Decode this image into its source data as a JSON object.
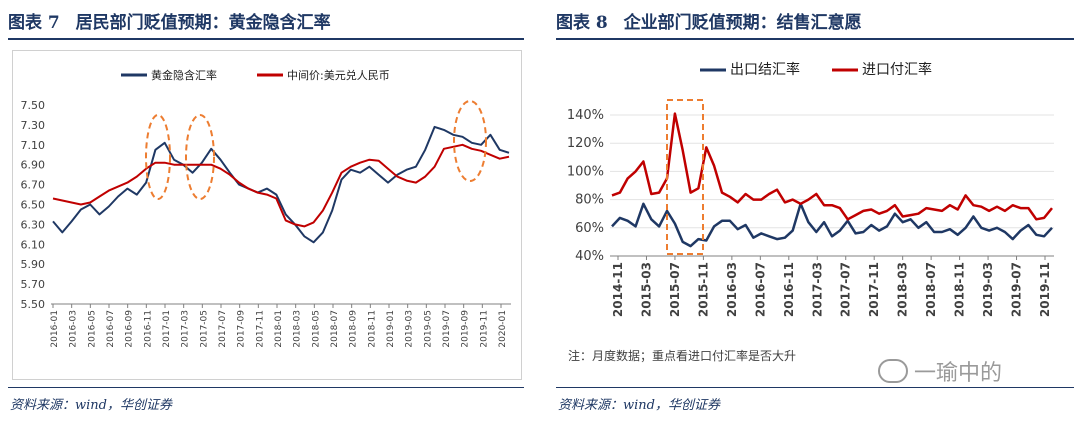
{
  "left": {
    "title_num": "图表 7",
    "title_text": "居民部门贬值预期：黄金隐含汇率",
    "source": "资料来源：wind，华创证券",
    "chart_data": {
      "type": "line",
      "title": "",
      "legend_placement": "top",
      "ylim": [
        5.5,
        7.5
      ],
      "yticks": [
        "7.50",
        "7.30",
        "7.10",
        "6.90",
        "6.70",
        "6.50",
        "6.30",
        "6.10",
        "5.90",
        "5.70",
        "5.50"
      ],
      "xticks": [
        "2016-01",
        "2016-03",
        "2016-05",
        "2016-07",
        "2016-09",
        "2016-11",
        "2017-01",
        "2017-03",
        "2017-05",
        "2017-07",
        "2017-09",
        "2017-11",
        "2018-01",
        "2018-03",
        "2018-05",
        "2018-07",
        "2018-09",
        "2018-11",
        "2019-01",
        "2019-03",
        "2019-05",
        "2019-07",
        "2019-09",
        "2019-11",
        "2020-01"
      ],
      "series": [
        {
          "name": "黄金隐含汇率",
          "color": "#1f3864",
          "values": [
            6.33,
            6.22,
            6.33,
            6.45,
            6.5,
            6.4,
            6.48,
            6.58,
            6.66,
            6.6,
            6.72,
            7.05,
            7.12,
            6.95,
            6.9,
            6.82,
            6.92,
            7.06,
            6.95,
            6.82,
            6.7,
            6.66,
            6.62,
            6.66,
            6.6,
            6.4,
            6.3,
            6.18,
            6.12,
            6.22,
            6.44,
            6.75,
            6.85,
            6.82,
            6.88,
            6.8,
            6.72,
            6.8,
            6.85,
            6.88,
            7.05,
            7.28,
            7.25,
            7.2,
            7.18,
            7.12,
            7.1,
            7.2,
            7.05,
            7.02
          ]
        },
        {
          "name": "中间价:美元兑人民币",
          "color": "#c00000",
          "values": [
            6.56,
            6.54,
            6.52,
            6.5,
            6.52,
            6.58,
            6.64,
            6.68,
            6.72,
            6.78,
            6.86,
            6.92,
            6.92,
            6.9,
            6.9,
            6.9,
            6.9,
            6.9,
            6.86,
            6.8,
            6.72,
            6.66,
            6.62,
            6.6,
            6.56,
            6.34,
            6.3,
            6.28,
            6.32,
            6.44,
            6.62,
            6.82,
            6.88,
            6.92,
            6.95,
            6.94,
            6.86,
            6.78,
            6.74,
            6.72,
            6.78,
            6.88,
            7.06,
            7.08,
            7.1,
            7.06,
            7.04,
            7.0,
            6.96,
            6.98
          ]
        }
      ]
    }
  },
  "right": {
    "title_num": "图表 8",
    "title_text": "企业部门贬值预期：结售汇意愿",
    "source": "资料来源：wind，华创证券",
    "note": "注：月度数据；重点看进口付汇率是否大升",
    "watermark": "一瑜中的",
    "chart_data": {
      "type": "line",
      "title": "",
      "legend_placement": "top",
      "ylim": [
        40,
        140
      ],
      "yticks": [
        "140%",
        "120%",
        "100%",
        "80%",
        "60%",
        "40%"
      ],
      "xticks": [
        "2014-11",
        "2015-03",
        "2015-07",
        "2015-11",
        "2016-03",
        "2016-07",
        "2016-11",
        "2017-03",
        "2017-07",
        "2017-11",
        "2018-03",
        "2018-07",
        "2018-11",
        "2019-03",
        "2019-07",
        "2019-11"
      ],
      "series": [
        {
          "name": "出口结汇率",
          "color": "#1f3864",
          "values": [
            61,
            67,
            65,
            61,
            77,
            66,
            61,
            72,
            63,
            50,
            47,
            52,
            51,
            61,
            65,
            65,
            59,
            62,
            53,
            56,
            54,
            52,
            53,
            58,
            77,
            64,
            57,
            64,
            54,
            58,
            65,
            56,
            57,
            62,
            58,
            61,
            70,
            64,
            66,
            60,
            64,
            57,
            57,
            59,
            55,
            60,
            68,
            60,
            58,
            60,
            57,
            52,
            58,
            62,
            55,
            54,
            60
          ]
        },
        {
          "name": "进口付汇率",
          "color": "#c00000",
          "values": [
            83,
            85,
            95,
            100,
            107,
            84,
            85,
            95,
            141,
            115,
            85,
            88,
            117,
            104,
            85,
            82,
            78,
            84,
            80,
            80,
            84,
            87,
            78,
            80,
            77,
            80,
            84,
            76,
            76,
            74,
            66,
            69,
            72,
            73,
            70,
            72,
            76,
            68,
            69,
            70,
            74,
            73,
            72,
            76,
            73,
            83,
            76,
            75,
            72,
            75,
            72,
            76,
            74,
            74,
            66,
            67,
            74
          ]
        }
      ]
    }
  }
}
